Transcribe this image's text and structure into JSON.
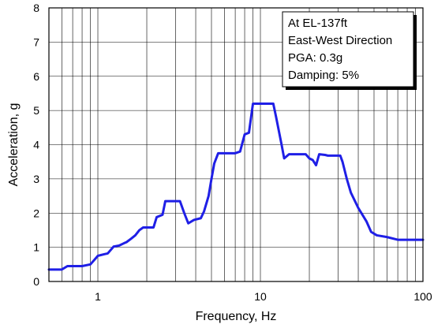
{
  "chart_data": {
    "type": "line",
    "xlabel": "Frequency, Hz",
    "ylabel": "Acceleration, g",
    "x_scale": "log",
    "xlim": [
      0.5,
      100
    ],
    "ylim": [
      0,
      8
    ],
    "x_major_ticks": [
      1,
      10,
      100
    ],
    "x_tick_labels": [
      "1",
      "10",
      "100"
    ],
    "y_ticks": [
      0,
      1,
      2,
      3,
      4,
      5,
      6,
      7,
      8
    ],
    "y_tick_labels": [
      "0",
      "1",
      "2",
      "3",
      "4",
      "5",
      "6",
      "7",
      "8"
    ],
    "grid": true,
    "annotation": {
      "placement": "top-right",
      "lines": [
        "At EL-137ft",
        "East-West Direction",
        "PGA: 0.3g",
        "Damping: 5%"
      ]
    },
    "series": [
      {
        "color": "#1f1fe6",
        "x": [
          0.5,
          0.6,
          0.65,
          0.8,
          0.9,
          1.0,
          1.1,
          1.15,
          1.25,
          1.35,
          1.45,
          1.5,
          1.6,
          1.7,
          1.8,
          1.9,
          2.0,
          2.05,
          2.2,
          2.3,
          2.5,
          2.6,
          3.2,
          3.4,
          3.6,
          3.9,
          4.3,
          4.5,
          4.8,
          5.0,
          5.2,
          5.5,
          7.0,
          7.5,
          8.0,
          8.5,
          9.0,
          12.0,
          12.5,
          13.5,
          14.0,
          15.0,
          19.0,
          20.0,
          21.0,
          22.0,
          23.0,
          25.0,
          26.0,
          31.0,
          32.0,
          34.0,
          36.0,
          40.0,
          45.0,
          48.0,
          52.0,
          60.0,
          70.0,
          100.0
        ],
        "y": [
          0.35,
          0.35,
          0.45,
          0.45,
          0.5,
          0.75,
          0.8,
          0.82,
          1.02,
          1.05,
          1.12,
          1.15,
          1.25,
          1.35,
          1.5,
          1.58,
          1.58,
          1.58,
          1.58,
          1.88,
          1.95,
          2.35,
          2.35,
          2.0,
          1.7,
          1.8,
          1.85,
          2.05,
          2.5,
          3.0,
          3.45,
          3.75,
          3.75,
          3.8,
          4.3,
          4.35,
          5.2,
          5.2,
          4.8,
          4.0,
          3.6,
          3.72,
          3.72,
          3.6,
          3.55,
          3.4,
          3.72,
          3.7,
          3.68,
          3.68,
          3.5,
          3.0,
          2.6,
          2.15,
          1.75,
          1.45,
          1.35,
          1.3,
          1.22,
          1.22
        ]
      }
    ]
  }
}
